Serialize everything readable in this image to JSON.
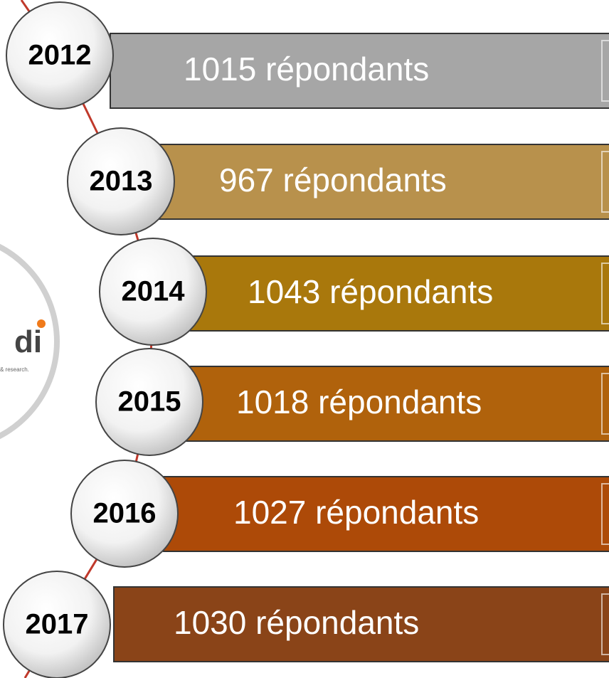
{
  "logo": {
    "text": "di",
    "tagline": "& research."
  },
  "items": [
    {
      "year": "2012",
      "label": "1015 répondants",
      "color": "#a6a6a6"
    },
    {
      "year": "2013",
      "label": "967 répondants",
      "color": "#b8914c"
    },
    {
      "year": "2014",
      "label": "1043 répondants",
      "color": "#a9780c"
    },
    {
      "year": "2015",
      "label": "1018 répondants",
      "color": "#b0620c"
    },
    {
      "year": "2016",
      "label": "1027 répondants",
      "color": "#ad4a08"
    },
    {
      "year": "2017",
      "label": "1030 répondants",
      "color": "#8a4418"
    }
  ]
}
